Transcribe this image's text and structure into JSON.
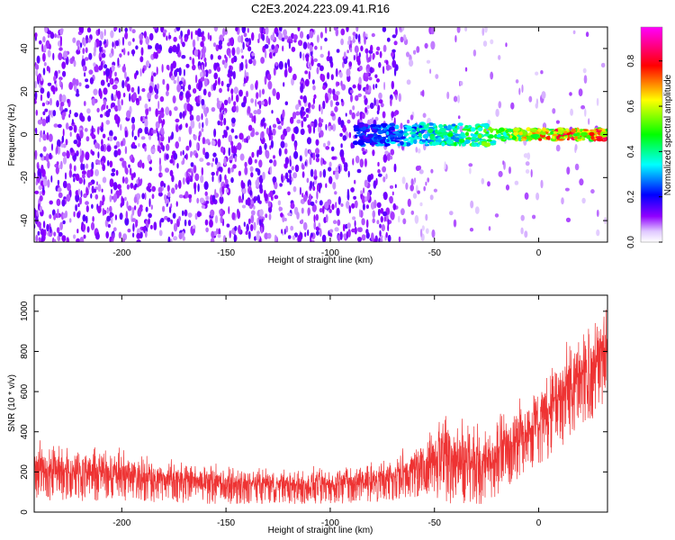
{
  "title": "C2E3.2024.223.09.41.R16",
  "chart_data": [
    {
      "type": "heatmap",
      "xlabel": "Height of straight line (km)",
      "ylabel": "Frequency (Hz)",
      "xlim": [
        -242,
        33
      ],
      "ylim": [
        -50,
        50
      ],
      "x_ticks": [
        "-200",
        "-150",
        "-100",
        "-50",
        "0"
      ],
      "y_ticks": [
        "-40",
        "-20",
        "0",
        "20",
        "40"
      ],
      "colorbar": {
        "label": "Normalized spectral amplitude",
        "ticks": [
          "0.0",
          "0.2",
          "0.4",
          "0.6",
          "0.8"
        ],
        "range": [
          0,
          0.95
        ],
        "colors": [
          "#ffffff",
          "#e0c8ff",
          "#9000ff",
          "#0000ff",
          "#00ffff",
          "#00ff00",
          "#ffff00",
          "#ff0000",
          "#ff00ff"
        ]
      },
      "description_points": {
        "noise_floor_end_km": -68,
        "signal_start_km": -88,
        "signal_center_hz": 0,
        "signal_trend": [
          {
            "x": -88,
            "amp": 0.25
          },
          {
            "x": -70,
            "amp": 0.35
          },
          {
            "x": -50,
            "amp": 0.45
          },
          {
            "x": -30,
            "amp": 0.55
          },
          {
            "x": -10,
            "amp": 0.7
          },
          {
            "x": 10,
            "amp": 0.85
          },
          {
            "x": 30,
            "amp": 0.85
          }
        ]
      }
    },
    {
      "type": "line",
      "xlabel": "Height of straight line (km)",
      "ylabel": "SNR (10 * v/v)",
      "xlim": [
        -242,
        33
      ],
      "ylim": [
        0,
        1080
      ],
      "x_ticks": [
        "-200",
        "-150",
        "-100",
        "-50",
        "0"
      ],
      "y_ticks": [
        "0",
        "200",
        "400",
        "600",
        "800",
        "1000"
      ],
      "series": [
        {
          "color": "#ee3333",
          "envelope": [
            {
              "x": -242,
              "low": 60,
              "high": 380
            },
            {
              "x": -200,
              "low": 50,
              "high": 320
            },
            {
              "x": -150,
              "low": 40,
              "high": 240
            },
            {
              "x": -120,
              "low": 40,
              "high": 220
            },
            {
              "x": -100,
              "low": 40,
              "high": 240
            },
            {
              "x": -75,
              "low": 50,
              "high": 280
            },
            {
              "x": -55,
              "low": 80,
              "high": 380
            },
            {
              "x": -47,
              "low": 60,
              "high": 560
            },
            {
              "x": -40,
              "low": 30,
              "high": 520
            },
            {
              "x": -25,
              "low": 40,
              "high": 440
            },
            {
              "x": -15,
              "low": 120,
              "high": 560
            },
            {
              "x": -5,
              "low": 200,
              "high": 620
            },
            {
              "x": 5,
              "low": 260,
              "high": 760
            },
            {
              "x": 20,
              "low": 420,
              "high": 920
            },
            {
              "x": 33,
              "low": 520,
              "high": 1060
            }
          ]
        }
      ]
    }
  ]
}
